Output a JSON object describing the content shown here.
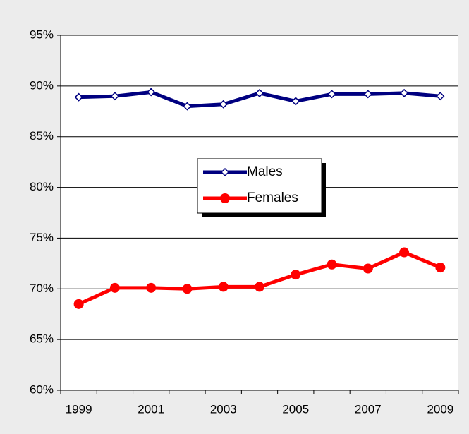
{
  "chart_data": {
    "type": "line",
    "categories": [
      "1999",
      null,
      "2001",
      null,
      "2003",
      null,
      "2005",
      null,
      "2007",
      null,
      "2009"
    ],
    "series": [
      {
        "name": "Males",
        "color": "#000080",
        "values": [
          88.9,
          89.0,
          89.4,
          88.0,
          88.2,
          89.3,
          88.5,
          89.2,
          89.2,
          89.3,
          89.0
        ]
      },
      {
        "name": "Females",
        "color": "#ff0000",
        "values": [
          68.5,
          70.1,
          70.1,
          70.0,
          70.2,
          70.2,
          71.4,
          72.4,
          72.0,
          73.6,
          72.1
        ]
      }
    ],
    "ylim": [
      60,
      95
    ],
    "yticks": [
      {
        "value": 60,
        "label": "60%"
      },
      {
        "value": 65,
        "label": "65%"
      },
      {
        "value": 70,
        "label": "70%"
      },
      {
        "value": 75,
        "label": "75%"
      },
      {
        "value": 80,
        "label": "80%"
      },
      {
        "value": 85,
        "label": "85%"
      },
      {
        "value": 90,
        "label": "90%"
      },
      {
        "value": 95,
        "label": "95%"
      }
    ],
    "grid": true,
    "legend": "center"
  }
}
